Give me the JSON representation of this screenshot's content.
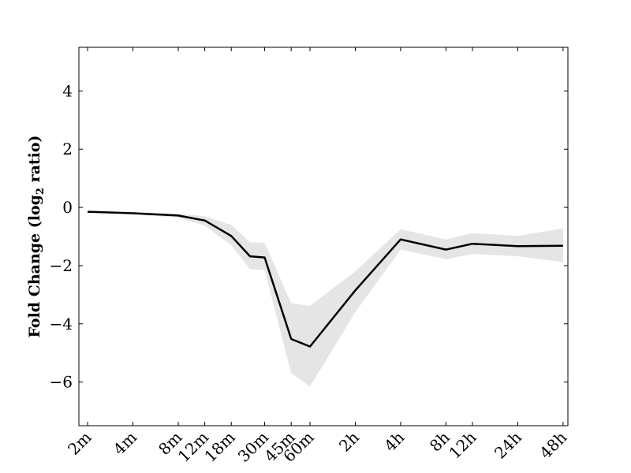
{
  "chart_data": {
    "type": "line",
    "title": "",
    "xlabel": "",
    "ylabel": "Fold Change (log",
    "ylabel_sub": "2",
    "ylabel_tail": " ratio)",
    "ylim": [
      -7.5,
      5.5
    ],
    "yticks": [
      {
        "value": 4,
        "label": "4"
      },
      {
        "value": 2,
        "label": "2"
      },
      {
        "value": 0,
        "label": "0"
      },
      {
        "value": -2,
        "label": "−2"
      },
      {
        "value": -4,
        "label": "−4"
      },
      {
        "value": -6,
        "label": "−6"
      }
    ],
    "x_labels": [
      "2m",
      "4m",
      "8m",
      "12m",
      "18m",
      "30m",
      "45m",
      "60m",
      "2h",
      "4h",
      "8h",
      "12h",
      "24h",
      "48h"
    ],
    "x_log_minutes": [
      2,
      4,
      8,
      12,
      18,
      30,
      45,
      60,
      120,
      240,
      480,
      720,
      1440,
      2880
    ],
    "xlim_minutes": [
      1.75,
      3100
    ],
    "series": [
      {
        "x_minutes": [
          2,
          4,
          8,
          12,
          18,
          24,
          30,
          45,
          60,
          120,
          240,
          480,
          720,
          1440,
          2880
        ],
        "values": [
          -0.15,
          -0.2,
          -0.28,
          -0.45,
          -0.98,
          -1.68,
          -1.72,
          -4.52,
          -4.78,
          -2.85,
          -1.1,
          -1.45,
          -1.25,
          -1.33,
          -1.32
        ],
        "band_upper": [
          -0.12,
          -0.16,
          -0.22,
          -0.3,
          -0.6,
          -1.2,
          -1.22,
          -3.3,
          -3.38,
          -2.2,
          -0.75,
          -1.1,
          -0.88,
          -0.98,
          -0.72
        ],
        "band_lower": [
          -0.18,
          -0.24,
          -0.36,
          -0.62,
          -1.3,
          -2.12,
          -2.15,
          -5.7,
          -6.15,
          -3.6,
          -1.45,
          -1.78,
          -1.6,
          -1.68,
          -1.88
        ],
        "color": "#000000",
        "band_color": "#e5e5e5"
      }
    ],
    "grid": false,
    "legend": "none"
  }
}
